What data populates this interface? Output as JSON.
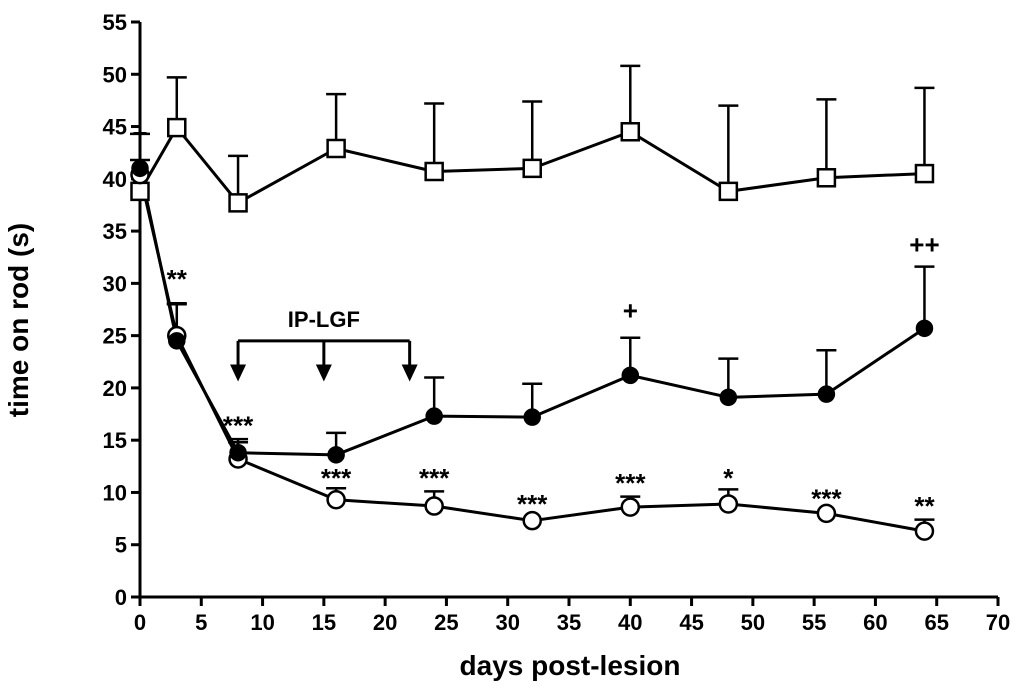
{
  "chart_data": {
    "type": "line",
    "title": "",
    "xlabel": "days post-lesion",
    "ylabel": "time on rod (s)",
    "xlim": [
      0,
      70
    ],
    "ylim": [
      0,
      55
    ],
    "x_ticks": [
      0,
      5,
      10,
      15,
      20,
      25,
      30,
      35,
      40,
      45,
      50,
      55,
      60,
      65,
      70
    ],
    "y_ticks": [
      0,
      5,
      10,
      15,
      20,
      25,
      30,
      35,
      40,
      45,
      50,
      55
    ],
    "grid": false,
    "series": [
      {
        "name": "open squares",
        "marker": "square-open",
        "x": [
          0,
          3,
          8,
          16,
          24,
          32,
          40,
          48,
          56,
          64
        ],
        "y": [
          38.8,
          44.9,
          37.7,
          42.9,
          40.7,
          41.0,
          44.5,
          38.8,
          40.1,
          40.5
        ],
        "err_up": [
          3.0,
          4.8,
          4.5,
          5.2,
          6.5,
          6.4,
          6.3,
          8.2,
          7.5,
          8.2
        ]
      },
      {
        "name": "filled circles",
        "marker": "circle-filled",
        "x": [
          0,
          3,
          8,
          16,
          24,
          32,
          40,
          48,
          56,
          64
        ],
        "y": [
          41.0,
          24.5,
          13.8,
          13.6,
          17.3,
          17.2,
          21.2,
          19.1,
          19.4,
          25.7
        ],
        "err_up": [
          3.3,
          3.6,
          1.3,
          2.1,
          3.7,
          3.2,
          3.6,
          3.7,
          4.2,
          5.9
        ]
      },
      {
        "name": "open circles",
        "marker": "circle-open",
        "x": [
          0,
          3,
          8,
          16,
          24,
          32,
          40,
          48,
          56,
          64
        ],
        "y": [
          40.4,
          25.0,
          13.2,
          9.3,
          8.7,
          7.3,
          8.6,
          8.9,
          8.0,
          6.3
        ],
        "err_up": [
          0,
          3.0,
          1.6,
          1.1,
          1.4,
          0,
          1.0,
          1.4,
          0,
          1.1
        ]
      }
    ],
    "annotations": [
      {
        "text": "**",
        "x": 3,
        "y": 30.5
      },
      {
        "text": "***",
        "x": 8,
        "y": 16.5
      },
      {
        "text": "***",
        "x": 16,
        "y": 11.5
      },
      {
        "text": "***",
        "x": 24,
        "y": 11.5
      },
      {
        "text": "***",
        "x": 32,
        "y": 9.0
      },
      {
        "text": "***",
        "x": 40,
        "y": 11.0
      },
      {
        "text": "*",
        "x": 48,
        "y": 11.5
      },
      {
        "text": "***",
        "x": 56,
        "y": 9.5
      },
      {
        "text": "**",
        "x": 64,
        "y": 8.8
      },
      {
        "text": "+",
        "x": 40,
        "y": 27.5
      },
      {
        "text": "++",
        "x": 64,
        "y": 33.8
      },
      {
        "text": "+",
        "x": 0,
        "y": 44.5
      }
    ],
    "treatment": {
      "label": "IP-LGF",
      "x_start": 8,
      "x_end": 22,
      "arrow_days": [
        8,
        15,
        22
      ],
      "bracket_y": 24.5,
      "arrow_tip_y": 20.8
    }
  }
}
